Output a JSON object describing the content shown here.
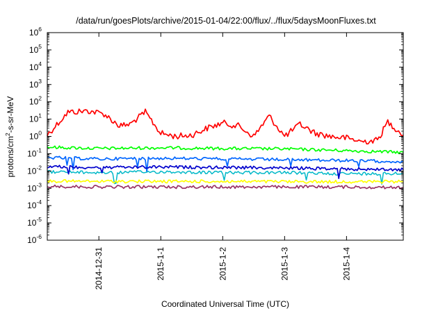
{
  "chart_data": {
    "type": "line",
    "title": "/data/run/goesPlots/archive/2015-01-04/22:00/flux/../flux/5daysMoonFluxes.txt",
    "xlabel": "Coordinated Universal Time (UTC)",
    "ylabel": {
      "base": "protons/cm",
      "exp": "2",
      "rest": "-s-sr-MeV"
    },
    "yscale": "log",
    "ylim": [
      1e-06,
      1000000.0
    ],
    "xlim": [
      "2014-12-30T04:00",
      "2015-01-04T22:00"
    ],
    "x_ticks": [
      "2014-12-31",
      "2015-1-1",
      "2015-1-2",
      "2015-1-3",
      "2015-1-4"
    ],
    "y_ticks": [
      {
        "base": "10",
        "exp": "-6"
      },
      {
        "base": "10",
        "exp": "-5"
      },
      {
        "base": "10",
        "exp": "-4"
      },
      {
        "base": "10",
        "exp": "-3"
      },
      {
        "base": "10",
        "exp": "-2"
      },
      {
        "base": "10",
        "exp": "-1"
      },
      {
        "base": "10",
        "exp": "0"
      },
      {
        "base": "10",
        "exp": "1"
      },
      {
        "base": "10",
        "exp": "2"
      },
      {
        "base": "10",
        "exp": "3"
      },
      {
        "base": "10",
        "exp": "4"
      },
      {
        "base": "10",
        "exp": "5"
      },
      {
        "base": "10",
        "exp": "6"
      }
    ],
    "grid": false,
    "legend": "none",
    "series": [
      {
        "color": "#ff0000",
        "stroke": 1.7,
        "x": [
          "2014-12-30T04:00",
          "2014-12-30T12:00",
          "2014-12-30T20:00",
          "2014-12-31T02:00",
          "2014-12-31T08:00",
          "2014-12-31T12:00",
          "2014-12-31T18:00",
          "2015-01-01T00:00",
          "2015-01-01T06:00",
          "2015-01-01T12:00",
          "2015-01-01T18:00",
          "2015-01-02T00:00",
          "2015-01-02T06:00",
          "2015-01-02T12:00",
          "2015-01-02T18:00",
          "2015-01-03T00:00",
          "2015-01-03T06:00",
          "2015-01-03T12:00",
          "2015-01-03T18:00",
          "2015-01-04T00:00",
          "2015-01-04T06:00",
          "2015-01-04T12:00",
          "2015-01-04T16:00",
          "2015-01-04T22:00"
        ],
        "values": [
          1.2,
          25,
          30,
          20,
          4,
          5,
          25,
          1.5,
          1.0,
          1.2,
          3,
          6,
          4,
          1.0,
          15,
          1.0,
          5,
          1.5,
          1.0,
          0.8,
          0.5,
          0.6,
          7,
          1.2
        ]
      },
      {
        "color": "#00ff00",
        "stroke": 1.7,
        "x": [
          "2014-12-30T04:00",
          "2014-12-31T00:00",
          "2015-01-01T00:00",
          "2015-01-02T00:00",
          "2015-01-03T00:00",
          "2015-01-04T00:00",
          "2015-01-04T22:00"
        ],
        "values": [
          0.24,
          0.2,
          0.22,
          0.2,
          0.19,
          0.15,
          0.12
        ]
      },
      {
        "color": "#0066ff",
        "stroke": 1.7,
        "x": [
          "2014-12-30T04:00",
          "2014-12-31T00:00",
          "2015-01-01T00:00",
          "2015-01-02T00:00",
          "2015-01-03T00:00",
          "2015-01-04T00:00",
          "2015-01-04T22:00"
        ],
        "values": [
          0.06,
          0.05,
          0.055,
          0.05,
          0.045,
          0.04,
          0.035
        ]
      },
      {
        "color": "#00b8c8",
        "stroke": 1.5,
        "x": [
          "2014-12-30T04:00",
          "2014-12-31T00:00",
          "2015-01-01T00:00",
          "2015-01-02T00:00",
          "2015-01-03T00:00",
          "2015-01-04T00:00",
          "2015-01-04T22:00"
        ],
        "values": [
          0.009,
          0.008,
          0.009,
          0.008,
          0.008,
          0.007,
          0.007
        ]
      },
      {
        "color": "#0000cc",
        "stroke": 1.7,
        "x": [
          "2014-12-30T04:00",
          "2014-12-31T00:00",
          "2015-01-01T00:00",
          "2015-01-02T00:00",
          "2015-01-03T00:00",
          "2015-01-04T00:00",
          "2015-01-04T22:00"
        ],
        "values": [
          0.018,
          0.016,
          0.017,
          0.016,
          0.015,
          0.013,
          0.012
        ]
      },
      {
        "color": "#ffff00",
        "stroke": 1.7,
        "x": [
          "2014-12-30T04:00",
          "2014-12-31T00:00",
          "2015-01-01T00:00",
          "2015-01-02T00:00",
          "2015-01-03T00:00",
          "2015-01-04T00:00",
          "2015-01-04T22:00"
        ],
        "values": [
          0.0026,
          0.0025,
          0.0025,
          0.0025,
          0.0024,
          0.0024,
          0.0024
        ]
      },
      {
        "color": "#993366",
        "stroke": 1.7,
        "x": [
          "2014-12-30T04:00",
          "2014-12-31T00:00",
          "2015-01-01T00:00",
          "2015-01-02T00:00",
          "2015-01-03T00:00",
          "2015-01-04T00:00",
          "2015-01-04T22:00"
        ],
        "values": [
          0.0013,
          0.0012,
          0.0012,
          0.0012,
          0.0012,
          0.0012,
          0.0011
        ]
      }
    ]
  }
}
